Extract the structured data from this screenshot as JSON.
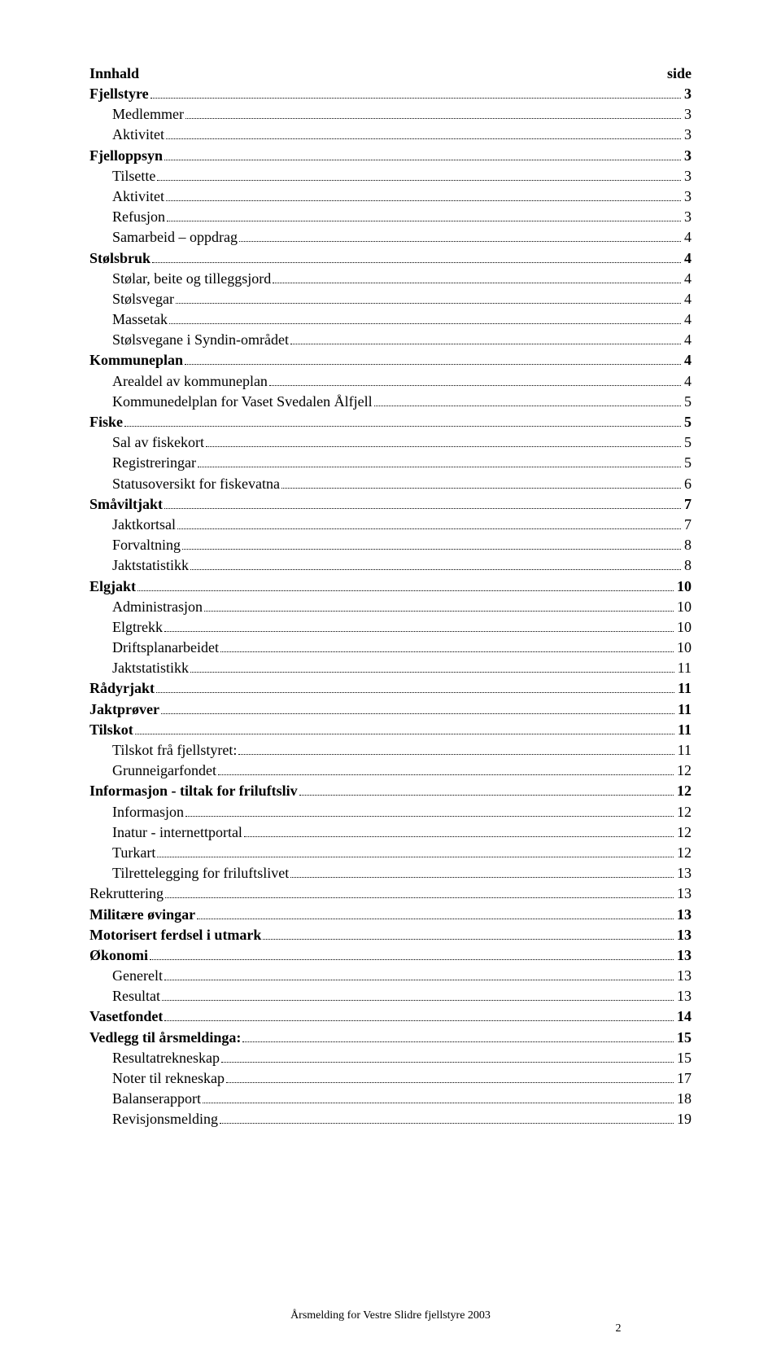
{
  "header": {
    "left": "Innhald",
    "right": "side"
  },
  "toc": [
    {
      "label": "Fjellstyre",
      "page": "3",
      "bold": true,
      "indent": false
    },
    {
      "label": "Medlemmer",
      "page": "3",
      "bold": false,
      "indent": true
    },
    {
      "label": "Aktivitet",
      "page": "3",
      "bold": false,
      "indent": true
    },
    {
      "label": "Fjelloppsyn",
      "page": "3",
      "bold": true,
      "indent": false
    },
    {
      "label": "Tilsette",
      "page": "3",
      "bold": false,
      "indent": true
    },
    {
      "label": "Aktivitet",
      "page": "3",
      "bold": false,
      "indent": true
    },
    {
      "label": "Refusjon",
      "page": "3",
      "bold": false,
      "indent": true
    },
    {
      "label": "Samarbeid – oppdrag",
      "page": "4",
      "bold": false,
      "indent": true
    },
    {
      "label": "Stølsbruk",
      "page": "4",
      "bold": true,
      "indent": false
    },
    {
      "label": "Stølar, beite og tilleggsjord",
      "page": "4",
      "bold": false,
      "indent": true
    },
    {
      "label": "Stølsvegar",
      "page": "4",
      "bold": false,
      "indent": true
    },
    {
      "label": "Massetak",
      "page": "4",
      "bold": false,
      "indent": true
    },
    {
      "label": "Stølsvegane i Syndin-området",
      "page": "4",
      "bold": false,
      "indent": true
    },
    {
      "label": "Kommuneplan",
      "page": "4",
      "bold": true,
      "indent": false
    },
    {
      "label": "Arealdel av kommuneplan",
      "page": "4",
      "bold": false,
      "indent": true
    },
    {
      "label": "Kommunedelplan for Vaset Svedalen Ålfjell",
      "page": "5",
      "bold": false,
      "indent": true
    },
    {
      "label": "Fiske",
      "page": "5",
      "bold": true,
      "indent": false
    },
    {
      "label": "Sal av fiskekort",
      "page": "5",
      "bold": false,
      "indent": true
    },
    {
      "label": "Registreringar",
      "page": "5",
      "bold": false,
      "indent": true
    },
    {
      "label": "Statusoversikt for fiskevatna",
      "page": "6",
      "bold": false,
      "indent": true
    },
    {
      "label": "Småviltjakt",
      "page": "7",
      "bold": true,
      "indent": false
    },
    {
      "label": "Jaktkortsal",
      "page": "7",
      "bold": false,
      "indent": true
    },
    {
      "label": "Forvaltning",
      "page": "8",
      "bold": false,
      "indent": true
    },
    {
      "label": "Jaktstatistikk",
      "page": "8",
      "bold": false,
      "indent": true
    },
    {
      "label": "Elgjakt",
      "page": "10",
      "bold": true,
      "indent": false
    },
    {
      "label": "Administrasjon",
      "page": "10",
      "bold": false,
      "indent": true
    },
    {
      "label": "Elgtrekk",
      "page": "10",
      "bold": false,
      "indent": true
    },
    {
      "label": "Driftsplanarbeidet",
      "page": "10",
      "bold": false,
      "indent": true
    },
    {
      "label": "Jaktstatistikk",
      "page": "11",
      "bold": false,
      "indent": true
    },
    {
      "label": "Rådyrjakt",
      "page": "11",
      "bold": true,
      "indent": false
    },
    {
      "label": "Jaktprøver",
      "page": "11",
      "bold": true,
      "indent": false
    },
    {
      "label": "Tilskot",
      "page": "11",
      "bold": true,
      "indent": false
    },
    {
      "label": "Tilskot frå fjellstyret:",
      "page": "11",
      "bold": false,
      "indent": true
    },
    {
      "label": "Grunneigarfondet",
      "page": "12",
      "bold": false,
      "indent": true
    },
    {
      "label": "Informasjon - tiltak for friluftsliv",
      "page": "12",
      "bold": true,
      "indent": false
    },
    {
      "label": "Informasjon",
      "page": "12",
      "bold": false,
      "indent": true
    },
    {
      "label": "Inatur - internettportal",
      "page": "12",
      "bold": false,
      "indent": true
    },
    {
      "label": "Turkart",
      "page": "12",
      "bold": false,
      "indent": true
    },
    {
      "label": "Tilrettelegging for friluftslivet",
      "page": "13",
      "bold": false,
      "indent": true
    },
    {
      "label": "Rekruttering",
      "page": "13",
      "bold": false,
      "indent": false
    },
    {
      "label": "Militære øvingar",
      "page": "13",
      "bold": true,
      "indent": false
    },
    {
      "label": "Motorisert ferdsel i utmark",
      "page": "13",
      "bold": true,
      "indent": false
    },
    {
      "label": "Økonomi",
      "page": "13",
      "bold": true,
      "indent": false
    },
    {
      "label": "Generelt",
      "page": "13",
      "bold": false,
      "indent": true
    },
    {
      "label": "Resultat",
      "page": "13",
      "bold": false,
      "indent": true
    },
    {
      "label": "Vasetfondet",
      "page": "14",
      "bold": true,
      "indent": false
    },
    {
      "label": "Vedlegg til årsmeldinga:",
      "page": "15",
      "bold": true,
      "indent": false
    },
    {
      "label": "Resultatrekneskap",
      "page": "15",
      "bold": false,
      "indent": true
    },
    {
      "label": "Noter til rekneskap",
      "page": "17",
      "bold": false,
      "indent": true
    },
    {
      "label": "Balanserapport",
      "page": "18",
      "bold": false,
      "indent": true
    },
    {
      "label": "Revisjonsmelding",
      "page": "19",
      "bold": false,
      "indent": true
    }
  ],
  "footer": {
    "text": "Årsmelding for Vestre Slidre fjellstyre 2003",
    "pagenum": "2"
  }
}
